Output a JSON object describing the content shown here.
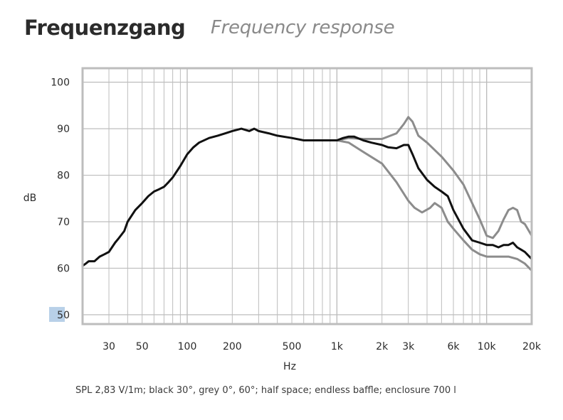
{
  "header": {
    "title_de": "Frequenzgang",
    "title_en": "Frequency response"
  },
  "caption": "SPL 2,83 V/1m; black 30°, grey 0°, 60°; half space; endless baffle; enclosure 700 l",
  "colors": {
    "black_curve": "#111111",
    "grey_curve": "#8c8c8c",
    "grid": "#bdbdbd",
    "frame": "#bdbdbd",
    "highlight_label_bg": "#b8d0e8"
  },
  "chart_data": {
    "type": "line",
    "xscale": "log",
    "xlim": [
      20,
      20000
    ],
    "ylim": [
      48,
      103
    ],
    "xlabel": "Hz",
    "ylabel": "dB",
    "grid": true,
    "x_ticks": [
      {
        "value": 30,
        "label": "30"
      },
      {
        "value": 50,
        "label": "50"
      },
      {
        "value": 100,
        "label": "100"
      },
      {
        "value": 200,
        "label": "200"
      },
      {
        "value": 500,
        "label": "500"
      },
      {
        "value": 1000,
        "label": "1k"
      },
      {
        "value": 2000,
        "label": "2k"
      },
      {
        "value": 3000,
        "label": "3k"
      },
      {
        "value": 6000,
        "label": "6k"
      },
      {
        "value": 10000,
        "label": "10k"
      },
      {
        "value": 20000,
        "label": "20k"
      }
    ],
    "y_ticks": [
      {
        "value": 100,
        "label": "100"
      },
      {
        "value": 90,
        "label": "90"
      },
      {
        "value": 80,
        "label": "80"
      },
      {
        "value": 70,
        "label": "70"
      },
      {
        "value": 60,
        "label": "60"
      },
      {
        "value": 50,
        "label": "50"
      }
    ],
    "series": [
      {
        "color": "#8c8c8c",
        "x": [
          1000,
          1200,
          1500,
          2000,
          2500,
          2800,
          3000,
          3200,
          3500,
          4000,
          5000,
          6000,
          7000,
          8000,
          9000,
          10000,
          11000,
          12000,
          13000,
          14000,
          15000,
          16000,
          17000,
          18000,
          20000
        ],
        "y": [
          87.5,
          88,
          87.8,
          87.8,
          89,
          91,
          92.5,
          91.5,
          88.5,
          87,
          84,
          81,
          78,
          74,
          70.5,
          67,
          66.5,
          68,
          70.5,
          72.5,
          73,
          72.5,
          70,
          69.5,
          67
        ]
      },
      {
        "color": "#8c8c8c",
        "x": [
          1000,
          1200,
          1500,
          2000,
          2500,
          3000,
          3300,
          3700,
          4200,
          4500,
          5000,
          5500,
          6000,
          7000,
          8000,
          9000,
          10000,
          11000,
          12000,
          14000,
          16000,
          18000,
          20000
        ],
        "y": [
          87.5,
          87,
          85,
          82.5,
          78.5,
          74.5,
          73,
          72,
          73,
          74,
          73,
          70,
          68.5,
          66,
          64,
          63,
          62.5,
          62.5,
          62.5,
          62.5,
          62,
          61,
          59.5
        ]
      },
      {
        "color": "#111111",
        "x": [
          20,
          21,
          22,
          24,
          26,
          28,
          30,
          33,
          35,
          38,
          40,
          45,
          50,
          55,
          60,
          65,
          70,
          75,
          80,
          90,
          100,
          110,
          120,
          140,
          160,
          180,
          200,
          230,
          260,
          280,
          300,
          350,
          400,
          500,
          600,
          700,
          800,
          900,
          1000,
          1100,
          1200,
          1300,
          1500,
          1700,
          2000,
          2200,
          2500,
          2800,
          3000,
          3200,
          3500,
          4000,
          4500,
          5000,
          5500,
          6000,
          7000,
          8000,
          9000,
          10000,
          11000,
          12000,
          13000,
          14000,
          15000,
          16000,
          17000,
          18000,
          20000
        ],
        "y": [
          60.5,
          61,
          61.5,
          61.5,
          62.5,
          63,
          63.5,
          65.5,
          66.5,
          68,
          70,
          72.5,
          74,
          75.5,
          76.5,
          77,
          77.5,
          78.5,
          79.5,
          82,
          84.5,
          86,
          87,
          88,
          88.5,
          89,
          89.5,
          90,
          89.5,
          90,
          89.5,
          89,
          88.5,
          88,
          87.5,
          87.5,
          87.5,
          87.5,
          87.5,
          88,
          88.3,
          88.3,
          87.5,
          87,
          86.5,
          86,
          85.8,
          86.5,
          86.5,
          84.5,
          81.5,
          79,
          77.5,
          76.5,
          75.5,
          72.5,
          68.5,
          66,
          65.5,
          65,
          65,
          64.5,
          65,
          65,
          65.5,
          64.5,
          64,
          63.5,
          62
        ]
      }
    ]
  }
}
